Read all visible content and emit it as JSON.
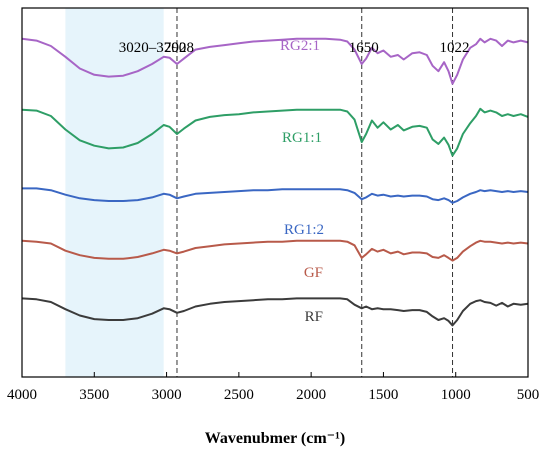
{
  "chart_data": {
    "type": "line",
    "title": "",
    "xlabel": "Wavenubmer (cm⁻¹)",
    "ylabel": "",
    "xlim": [
      4000,
      500
    ],
    "x_reversed": true,
    "x_ticks": [
      "4000",
      "3500",
      "3000",
      "2500",
      "2000",
      "1500",
      "1000",
      "500"
    ],
    "y_ticks_shown": false,
    "shaded_region": {
      "label": "3020–3700",
      "x_from": 3700,
      "x_to": 3020,
      "color": "#e6f4fb"
    },
    "reference_lines": [
      {
        "x": 2928,
        "label": "2928"
      },
      {
        "x": 1650,
        "label": "1650"
      },
      {
        "x": 1022,
        "label": "1022"
      }
    ],
    "series": [
      {
        "name": "RG2:1",
        "color": "#a765c6",
        "points": [
          [
            4000,
            88
          ],
          [
            3900,
            86
          ],
          [
            3800,
            80
          ],
          [
            3700,
            68
          ],
          [
            3600,
            55
          ],
          [
            3500,
            48
          ],
          [
            3400,
            46
          ],
          [
            3300,
            47
          ],
          [
            3200,
            52
          ],
          [
            3100,
            60
          ],
          [
            3020,
            68
          ],
          [
            2980,
            67
          ],
          [
            2928,
            60
          ],
          [
            2880,
            66
          ],
          [
            2800,
            76
          ],
          [
            2700,
            79
          ],
          [
            2600,
            81
          ],
          [
            2500,
            83
          ],
          [
            2400,
            85
          ],
          [
            2300,
            86
          ],
          [
            2200,
            87
          ],
          [
            2100,
            88
          ],
          [
            2000,
            88
          ],
          [
            1900,
            88
          ],
          [
            1800,
            87
          ],
          [
            1750,
            85
          ],
          [
            1700,
            76
          ],
          [
            1650,
            60
          ],
          [
            1620,
            66
          ],
          [
            1580,
            78
          ],
          [
            1540,
            72
          ],
          [
            1500,
            75
          ],
          [
            1450,
            68
          ],
          [
            1400,
            70
          ],
          [
            1360,
            65
          ],
          [
            1300,
            72
          ],
          [
            1250,
            73
          ],
          [
            1200,
            70
          ],
          [
            1160,
            58
          ],
          [
            1120,
            52
          ],
          [
            1080,
            62
          ],
          [
            1050,
            52
          ],
          [
            1022,
            38
          ],
          [
            990,
            48
          ],
          [
            950,
            65
          ],
          [
            900,
            78
          ],
          [
            860,
            82
          ],
          [
            830,
            88
          ],
          [
            800,
            84
          ],
          [
            760,
            88
          ],
          [
            720,
            86
          ],
          [
            680,
            80
          ],
          [
            640,
            86
          ],
          [
            600,
            84
          ],
          [
            550,
            86
          ],
          [
            500,
            84
          ]
        ]
      },
      {
        "name": "RG1:1",
        "color": "#2e9e66",
        "points": [
          [
            4000,
            57
          ],
          [
            3900,
            56
          ],
          [
            3800,
            50
          ],
          [
            3700,
            35
          ],
          [
            3600,
            23
          ],
          [
            3500,
            17
          ],
          [
            3400,
            14
          ],
          [
            3300,
            15
          ],
          [
            3200,
            20
          ],
          [
            3100,
            30
          ],
          [
            3020,
            40
          ],
          [
            2980,
            38
          ],
          [
            2928,
            30
          ],
          [
            2880,
            36
          ],
          [
            2800,
            45
          ],
          [
            2700,
            49
          ],
          [
            2600,
            51
          ],
          [
            2500,
            52
          ],
          [
            2400,
            54
          ],
          [
            2300,
            55
          ],
          [
            2200,
            56
          ],
          [
            2100,
            57
          ],
          [
            2000,
            57
          ],
          [
            1900,
            57
          ],
          [
            1800,
            57
          ],
          [
            1750,
            55
          ],
          [
            1700,
            46
          ],
          [
            1650,
            21
          ],
          [
            1620,
            30
          ],
          [
            1580,
            45
          ],
          [
            1540,
            37
          ],
          [
            1500,
            43
          ],
          [
            1450,
            35
          ],
          [
            1400,
            40
          ],
          [
            1360,
            34
          ],
          [
            1300,
            38
          ],
          [
            1250,
            39
          ],
          [
            1200,
            37
          ],
          [
            1160,
            24
          ],
          [
            1120,
            19
          ],
          [
            1080,
            26
          ],
          [
            1050,
            18
          ],
          [
            1022,
            6
          ],
          [
            990,
            14
          ],
          [
            950,
            30
          ],
          [
            900,
            42
          ],
          [
            860,
            50
          ],
          [
            830,
            58
          ],
          [
            800,
            54
          ],
          [
            760,
            56
          ],
          [
            720,
            54
          ],
          [
            680,
            50
          ],
          [
            640,
            52
          ],
          [
            600,
            50
          ],
          [
            550,
            52
          ],
          [
            500,
            49
          ]
        ]
      },
      {
        "name": "RG1:2",
        "color": "#3a67c3",
        "points": [
          [
            4000,
            24
          ],
          [
            3900,
            24
          ],
          [
            3800,
            22
          ],
          [
            3700,
            17
          ],
          [
            3600,
            13
          ],
          [
            3500,
            11
          ],
          [
            3400,
            10
          ],
          [
            3300,
            10
          ],
          [
            3200,
            11
          ],
          [
            3100,
            14
          ],
          [
            3020,
            18
          ],
          [
            2980,
            17
          ],
          [
            2928,
            13
          ],
          [
            2880,
            15
          ],
          [
            2800,
            18
          ],
          [
            2700,
            19
          ],
          [
            2600,
            20
          ],
          [
            2500,
            21
          ],
          [
            2400,
            22
          ],
          [
            2300,
            22
          ],
          [
            2200,
            23
          ],
          [
            2100,
            23
          ],
          [
            2000,
            23
          ],
          [
            1900,
            23
          ],
          [
            1800,
            23
          ],
          [
            1750,
            22
          ],
          [
            1700,
            19
          ],
          [
            1650,
            12
          ],
          [
            1620,
            14
          ],
          [
            1580,
            18
          ],
          [
            1540,
            16
          ],
          [
            1500,
            17
          ],
          [
            1450,
            15
          ],
          [
            1400,
            16
          ],
          [
            1360,
            15
          ],
          [
            1300,
            16
          ],
          [
            1250,
            16
          ],
          [
            1200,
            15
          ],
          [
            1160,
            12
          ],
          [
            1120,
            11
          ],
          [
            1080,
            13
          ],
          [
            1050,
            11
          ],
          [
            1022,
            8
          ],
          [
            990,
            10
          ],
          [
            950,
            14
          ],
          [
            900,
            18
          ],
          [
            860,
            20
          ],
          [
            830,
            22
          ],
          [
            800,
            21
          ],
          [
            760,
            22
          ],
          [
            720,
            21
          ],
          [
            680,
            20
          ],
          [
            640,
            21
          ],
          [
            600,
            20
          ],
          [
            550,
            21
          ],
          [
            500,
            20
          ]
        ]
      },
      {
        "name": "GF",
        "color": "#b85a4a",
        "points": [
          [
            4000,
            8
          ],
          [
            3900,
            7
          ],
          [
            3800,
            5
          ],
          [
            3700,
            -3
          ],
          [
            3600,
            -8
          ],
          [
            3500,
            -11
          ],
          [
            3400,
            -12
          ],
          [
            3300,
            -12
          ],
          [
            3200,
            -10
          ],
          [
            3100,
            -6
          ],
          [
            3020,
            -2
          ],
          [
            2980,
            -3
          ],
          [
            2928,
            -6
          ],
          [
            2880,
            -4
          ],
          [
            2800,
            0
          ],
          [
            2700,
            2
          ],
          [
            2600,
            4
          ],
          [
            2500,
            5
          ],
          [
            2400,
            6
          ],
          [
            2300,
            7
          ],
          [
            2200,
            7
          ],
          [
            2100,
            8
          ],
          [
            2000,
            8
          ],
          [
            1900,
            8
          ],
          [
            1800,
            8
          ],
          [
            1750,
            7
          ],
          [
            1700,
            3
          ],
          [
            1650,
            -11
          ],
          [
            1620,
            -7
          ],
          [
            1580,
            -1
          ],
          [
            1540,
            -4
          ],
          [
            1500,
            -2
          ],
          [
            1450,
            -6
          ],
          [
            1400,
            -4
          ],
          [
            1360,
            -7
          ],
          [
            1300,
            -5
          ],
          [
            1250,
            -5
          ],
          [
            1200,
            -6
          ],
          [
            1160,
            -10
          ],
          [
            1120,
            -11
          ],
          [
            1080,
            -8
          ],
          [
            1050,
            -11
          ],
          [
            1022,
            -14
          ],
          [
            990,
            -11
          ],
          [
            950,
            -4
          ],
          [
            900,
            2
          ],
          [
            860,
            6
          ],
          [
            830,
            8
          ],
          [
            800,
            7
          ],
          [
            760,
            7
          ],
          [
            720,
            6
          ],
          [
            680,
            5
          ],
          [
            640,
            6
          ],
          [
            600,
            5
          ],
          [
            550,
            6
          ],
          [
            500,
            5
          ]
        ]
      },
      {
        "name": "RF",
        "color": "#3b3b3b",
        "points": [
          [
            4000,
            -16
          ],
          [
            3900,
            -17
          ],
          [
            3800,
            -20
          ],
          [
            3700,
            -28
          ],
          [
            3600,
            -35
          ],
          [
            3500,
            -39
          ],
          [
            3400,
            -40
          ],
          [
            3300,
            -40
          ],
          [
            3200,
            -38
          ],
          [
            3100,
            -33
          ],
          [
            3020,
            -27
          ],
          [
            2980,
            -28
          ],
          [
            2928,
            -32
          ],
          [
            2880,
            -30
          ],
          [
            2800,
            -25
          ],
          [
            2700,
            -22
          ],
          [
            2600,
            -20
          ],
          [
            2500,
            -19
          ],
          [
            2400,
            -18
          ],
          [
            2300,
            -17
          ],
          [
            2200,
            -17
          ],
          [
            2100,
            -16
          ],
          [
            2000,
            -16
          ],
          [
            1900,
            -16
          ],
          [
            1800,
            -16
          ],
          [
            1750,
            -17
          ],
          [
            1700,
            -23
          ],
          [
            1650,
            -27
          ],
          [
            1620,
            -25
          ],
          [
            1580,
            -28
          ],
          [
            1540,
            -27
          ],
          [
            1500,
            -28
          ],
          [
            1450,
            -28
          ],
          [
            1400,
            -29
          ],
          [
            1360,
            -30
          ],
          [
            1300,
            -29
          ],
          [
            1250,
            -29
          ],
          [
            1200,
            -31
          ],
          [
            1160,
            -36
          ],
          [
            1120,
            -40
          ],
          [
            1080,
            -38
          ],
          [
            1050,
            -41
          ],
          [
            1022,
            -46
          ],
          [
            990,
            -40
          ],
          [
            950,
            -30
          ],
          [
            900,
            -22
          ],
          [
            860,
            -19
          ],
          [
            830,
            -18
          ],
          [
            800,
            -20
          ],
          [
            760,
            -21
          ],
          [
            720,
            -24
          ],
          [
            680,
            -21
          ],
          [
            640,
            -25
          ],
          [
            600,
            -22
          ],
          [
            550,
            -23
          ],
          [
            500,
            -22
          ]
        ]
      }
    ]
  }
}
